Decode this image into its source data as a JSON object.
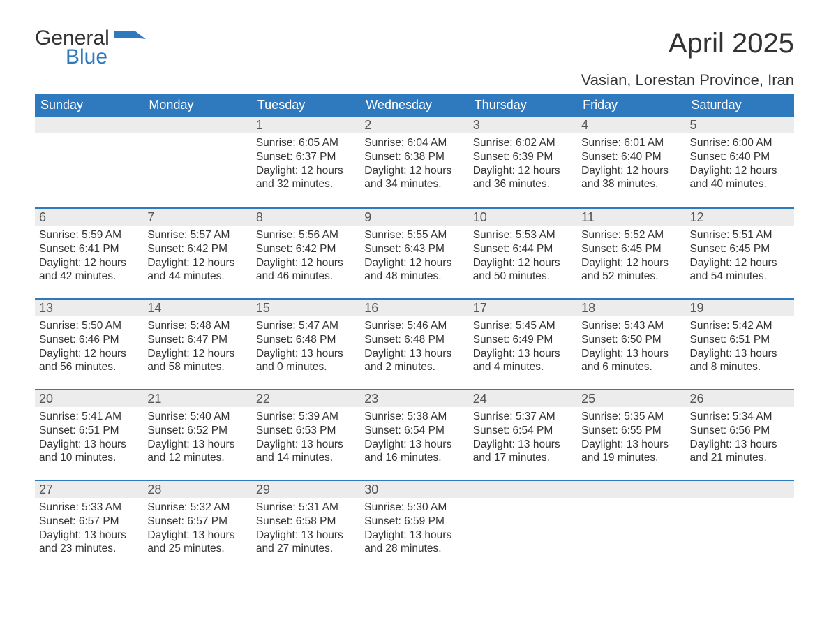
{
  "logo": {
    "text_general": "General",
    "text_blue": "Blue",
    "shape_color": "#2f79bf"
  },
  "title": "April 2025",
  "location": "Vasian, Lorestan Province, Iran",
  "colors": {
    "header_bg": "#2f79bf",
    "header_text": "#ffffff",
    "day_number_bg": "#ececec",
    "day_number_text": "#555555",
    "body_text": "#333333",
    "week_divider": "#2f79bf",
    "page_bg": "#ffffff"
  },
  "weekdays": [
    "Sunday",
    "Monday",
    "Tuesday",
    "Wednesday",
    "Thursday",
    "Friday",
    "Saturday"
  ],
  "weeks": [
    [
      {
        "day": "",
        "lines": []
      },
      {
        "day": "",
        "lines": []
      },
      {
        "day": "1",
        "lines": [
          "Sunrise: 6:05 AM",
          "Sunset: 6:37 PM",
          "Daylight: 12 hours and 32 minutes."
        ]
      },
      {
        "day": "2",
        "lines": [
          "Sunrise: 6:04 AM",
          "Sunset: 6:38 PM",
          "Daylight: 12 hours and 34 minutes."
        ]
      },
      {
        "day": "3",
        "lines": [
          "Sunrise: 6:02 AM",
          "Sunset: 6:39 PM",
          "Daylight: 12 hours and 36 minutes."
        ]
      },
      {
        "day": "4",
        "lines": [
          "Sunrise: 6:01 AM",
          "Sunset: 6:40 PM",
          "Daylight: 12 hours and 38 minutes."
        ]
      },
      {
        "day": "5",
        "lines": [
          "Sunrise: 6:00 AM",
          "Sunset: 6:40 PM",
          "Daylight: 12 hours and 40 minutes."
        ]
      }
    ],
    [
      {
        "day": "6",
        "lines": [
          "Sunrise: 5:59 AM",
          "Sunset: 6:41 PM",
          "Daylight: 12 hours and 42 minutes."
        ]
      },
      {
        "day": "7",
        "lines": [
          "Sunrise: 5:57 AM",
          "Sunset: 6:42 PM",
          "Daylight: 12 hours and 44 minutes."
        ]
      },
      {
        "day": "8",
        "lines": [
          "Sunrise: 5:56 AM",
          "Sunset: 6:42 PM",
          "Daylight: 12 hours and 46 minutes."
        ]
      },
      {
        "day": "9",
        "lines": [
          "Sunrise: 5:55 AM",
          "Sunset: 6:43 PM",
          "Daylight: 12 hours and 48 minutes."
        ]
      },
      {
        "day": "10",
        "lines": [
          "Sunrise: 5:53 AM",
          "Sunset: 6:44 PM",
          "Daylight: 12 hours and 50 minutes."
        ]
      },
      {
        "day": "11",
        "lines": [
          "Sunrise: 5:52 AM",
          "Sunset: 6:45 PM",
          "Daylight: 12 hours and 52 minutes."
        ]
      },
      {
        "day": "12",
        "lines": [
          "Sunrise: 5:51 AM",
          "Sunset: 6:45 PM",
          "Daylight: 12 hours and 54 minutes."
        ]
      }
    ],
    [
      {
        "day": "13",
        "lines": [
          "Sunrise: 5:50 AM",
          "Sunset: 6:46 PM",
          "Daylight: 12 hours and 56 minutes."
        ]
      },
      {
        "day": "14",
        "lines": [
          "Sunrise: 5:48 AM",
          "Sunset: 6:47 PM",
          "Daylight: 12 hours and 58 minutes."
        ]
      },
      {
        "day": "15",
        "lines": [
          "Sunrise: 5:47 AM",
          "Sunset: 6:48 PM",
          "Daylight: 13 hours and 0 minutes."
        ]
      },
      {
        "day": "16",
        "lines": [
          "Sunrise: 5:46 AM",
          "Sunset: 6:48 PM",
          "Daylight: 13 hours and 2 minutes."
        ]
      },
      {
        "day": "17",
        "lines": [
          "Sunrise: 5:45 AM",
          "Sunset: 6:49 PM",
          "Daylight: 13 hours and 4 minutes."
        ]
      },
      {
        "day": "18",
        "lines": [
          "Sunrise: 5:43 AM",
          "Sunset: 6:50 PM",
          "Daylight: 13 hours and 6 minutes."
        ]
      },
      {
        "day": "19",
        "lines": [
          "Sunrise: 5:42 AM",
          "Sunset: 6:51 PM",
          "Daylight: 13 hours and 8 minutes."
        ]
      }
    ],
    [
      {
        "day": "20",
        "lines": [
          "Sunrise: 5:41 AM",
          "Sunset: 6:51 PM",
          "Daylight: 13 hours and 10 minutes."
        ]
      },
      {
        "day": "21",
        "lines": [
          "Sunrise: 5:40 AM",
          "Sunset: 6:52 PM",
          "Daylight: 13 hours and 12 minutes."
        ]
      },
      {
        "day": "22",
        "lines": [
          "Sunrise: 5:39 AM",
          "Sunset: 6:53 PM",
          "Daylight: 13 hours and 14 minutes."
        ]
      },
      {
        "day": "23",
        "lines": [
          "Sunrise: 5:38 AM",
          "Sunset: 6:54 PM",
          "Daylight: 13 hours and 16 minutes."
        ]
      },
      {
        "day": "24",
        "lines": [
          "Sunrise: 5:37 AM",
          "Sunset: 6:54 PM",
          "Daylight: 13 hours and 17 minutes."
        ]
      },
      {
        "day": "25",
        "lines": [
          "Sunrise: 5:35 AM",
          "Sunset: 6:55 PM",
          "Daylight: 13 hours and 19 minutes."
        ]
      },
      {
        "day": "26",
        "lines": [
          "Sunrise: 5:34 AM",
          "Sunset: 6:56 PM",
          "Daylight: 13 hours and 21 minutes."
        ]
      }
    ],
    [
      {
        "day": "27",
        "lines": [
          "Sunrise: 5:33 AM",
          "Sunset: 6:57 PM",
          "Daylight: 13 hours and 23 minutes."
        ]
      },
      {
        "day": "28",
        "lines": [
          "Sunrise: 5:32 AM",
          "Sunset: 6:57 PM",
          "Daylight: 13 hours and 25 minutes."
        ]
      },
      {
        "day": "29",
        "lines": [
          "Sunrise: 5:31 AM",
          "Sunset: 6:58 PM",
          "Daylight: 13 hours and 27 minutes."
        ]
      },
      {
        "day": "30",
        "lines": [
          "Sunrise: 5:30 AM",
          "Sunset: 6:59 PM",
          "Daylight: 13 hours and 28 minutes."
        ]
      },
      {
        "day": "",
        "lines": []
      },
      {
        "day": "",
        "lines": []
      },
      {
        "day": "",
        "lines": []
      }
    ]
  ]
}
